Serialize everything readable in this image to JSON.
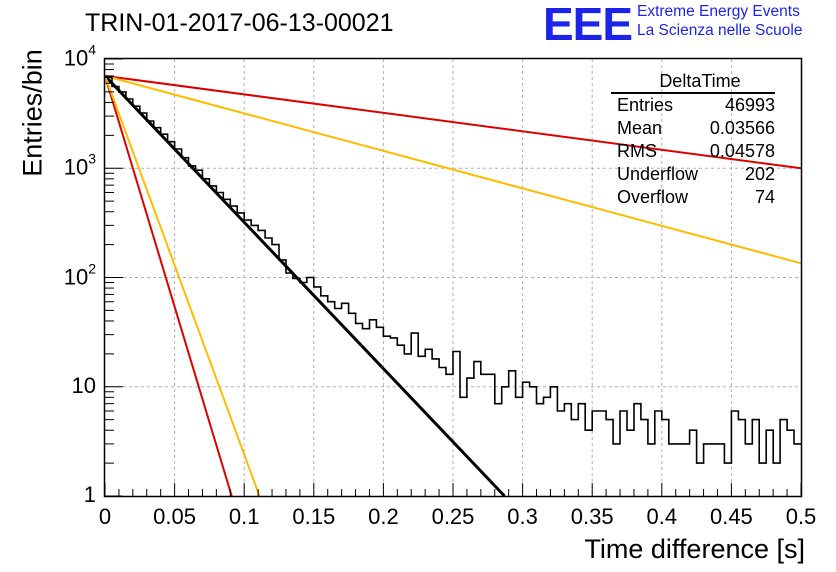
{
  "title": "TRIN-01-2017-06-13-00021",
  "logo": {
    "mark": "EEE",
    "line1": "Extreme Energy Events",
    "line2": "La Scienza nelle Scuole",
    "color": "#1c24e8"
  },
  "stats_box": {
    "title": "DeltaTime",
    "rows": [
      {
        "label": "Entries",
        "value": "46993"
      },
      {
        "label": "Mean",
        "value": "0.03566"
      },
      {
        "label": "RMS",
        "value": "0.04578"
      },
      {
        "label": "Underflow",
        "value": "202"
      },
      {
        "label": "Overflow",
        "value": "74"
      }
    ]
  },
  "chart_data": {
    "type": "line",
    "xlabel": "Time difference [s]",
    "ylabel": "Entries/bin",
    "xlim": [
      0,
      0.5
    ],
    "ylim": [
      1,
      10000
    ],
    "y_scale": "log",
    "grid": true,
    "x_ticks": [
      "0",
      "0.05",
      "0.1",
      "0.15",
      "0.2",
      "0.25",
      "0.3",
      "0.35",
      "0.4",
      "0.45",
      "0.5"
    ],
    "y_ticks": [
      {
        "value": 1,
        "base": "1",
        "exp": ""
      },
      {
        "value": 10,
        "base": "10",
        "exp": ""
      },
      {
        "value": 100,
        "base": "10",
        "exp": "2"
      },
      {
        "value": 1000,
        "base": "10",
        "exp": "3"
      },
      {
        "value": 10000,
        "base": "10",
        "exp": "4"
      }
    ],
    "histogram": {
      "bin_width": 0.005,
      "color": "#000000",
      "counts": [
        6800,
        5600,
        5000,
        4300,
        3700,
        3200,
        2700,
        2350,
        2050,
        1750,
        1500,
        1250,
        1050,
        960,
        800,
        690,
        600,
        520,
        450,
        390,
        335,
        300,
        270,
        230,
        200,
        145,
        110,
        98,
        90,
        100,
        82,
        68,
        60,
        52,
        58,
        47,
        38,
        34,
        41,
        35,
        29,
        28,
        24,
        20,
        31,
        19,
        22,
        18,
        15,
        13,
        21,
        8,
        12,
        17,
        13,
        13,
        7,
        10,
        14,
        8,
        11,
        10,
        7,
        8,
        10,
        6,
        7,
        5,
        7,
        4,
        6,
        6,
        5,
        3,
        6,
        4,
        7,
        5,
        3,
        6,
        5,
        3,
        3,
        3,
        4,
        2,
        3,
        3,
        3,
        2,
        6,
        5,
        3,
        5,
        2,
        4,
        2,
        5,
        4,
        3
      ]
    },
    "series": [
      {
        "color": "#000000",
        "points": [
          [
            0,
            7000
          ],
          [
            0.287,
            1
          ]
        ]
      },
      {
        "color": "#dd0000",
        "points": [
          [
            0,
            7000
          ],
          [
            0.5,
            1000
          ]
        ]
      },
      {
        "color": "#dd0000",
        "points": [
          [
            0,
            7000
          ],
          [
            0.091,
            1
          ]
        ]
      },
      {
        "color": "#ffbb00",
        "points": [
          [
            0,
            7000
          ],
          [
            0.5,
            135
          ]
        ]
      },
      {
        "color": "#ffbb00",
        "points": [
          [
            0,
            7000
          ],
          [
            0.111,
            1
          ]
        ]
      }
    ]
  }
}
